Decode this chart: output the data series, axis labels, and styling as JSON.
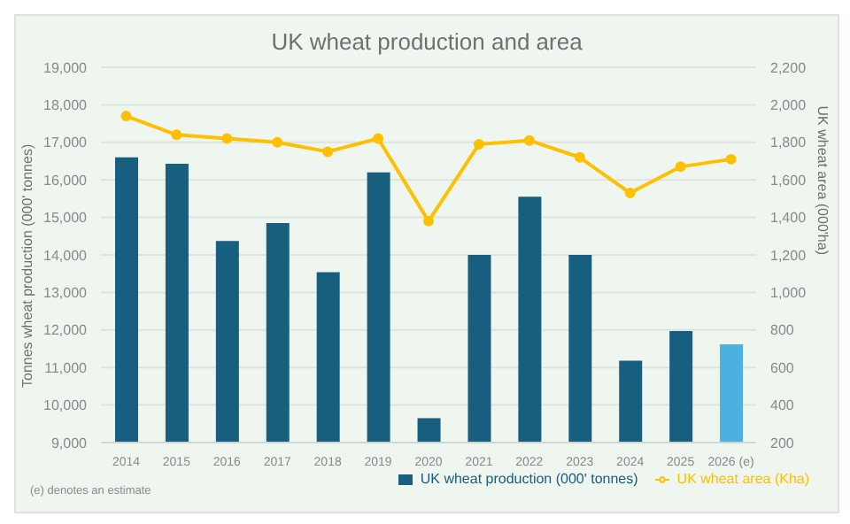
{
  "chart_data": {
    "type": "bar",
    "title": "UK wheat production and area",
    "ylabel": "Tonnes wheat production (000' tonnes)",
    "y2label": "UK wheat area (000'ha)",
    "categories": [
      "2014",
      "2015",
      "2016",
      "2017",
      "2018",
      "2019",
      "2020",
      "2021",
      "2022",
      "2023",
      "2024",
      "2025",
      "2026 (e)"
    ],
    "series": [
      {
        "name": "UK wheat production (000' tonnes)",
        "color": "#175e7f",
        "colors": [
          "#175e7f",
          "#175e7f",
          "#175e7f",
          "#175e7f",
          "#175e7f",
          "#175e7f",
          "#175e7f",
          "#175e7f",
          "#175e7f",
          "#175e7f",
          "#175e7f",
          "#175e7f",
          "#4bb1e1"
        ],
        "values": [
          16600,
          16430,
          14370,
          14850,
          13540,
          16200,
          9650,
          14000,
          15550,
          14000,
          11180,
          11970,
          11620
        ]
      },
      {
        "name": "UK wheat area (Kha)",
        "type": "line",
        "axis": "y2",
        "color": "#ffc000",
        "marker": "circle",
        "values": [
          1940,
          1840,
          1820,
          1800,
          1750,
          1820,
          1380,
          1790,
          1810,
          1720,
          1530,
          1670,
          1710
        ]
      }
    ],
    "ylim": [
      9000,
      19000
    ],
    "yticks": [
      {
        "value": 9000,
        "label": "9,000"
      },
      {
        "value": 10000,
        "label": "10,000"
      },
      {
        "value": 11000,
        "label": "11,000"
      },
      {
        "value": 12000,
        "label": "12,000"
      },
      {
        "value": 13000,
        "label": "13,000"
      },
      {
        "value": 14000,
        "label": "14,000"
      },
      {
        "value": 15000,
        "label": "15,000"
      },
      {
        "value": 16000,
        "label": "16,000"
      },
      {
        "value": 17000,
        "label": "17,000"
      },
      {
        "value": 18000,
        "label": "18,000"
      },
      {
        "value": 19000,
        "label": "19,000"
      }
    ],
    "y2lim": [
      200,
      2200
    ],
    "y2ticks": [
      200,
      400,
      600,
      800,
      {
        "value": 1000,
        "label": "1,000"
      },
      {
        "value": 1200,
        "label": "1,200"
      },
      {
        "value": 1400,
        "label": "1,400"
      },
      {
        "value": 1600,
        "label": "1,600"
      },
      {
        "value": 1800,
        "label": "1,800"
      },
      {
        "value": 2000,
        "label": "2,000"
      },
      {
        "value": 2200,
        "label": "2,200"
      }
    ],
    "grid": "y",
    "legend": "bottom",
    "annotations": [
      "(e) denotes an estimate"
    ]
  }
}
